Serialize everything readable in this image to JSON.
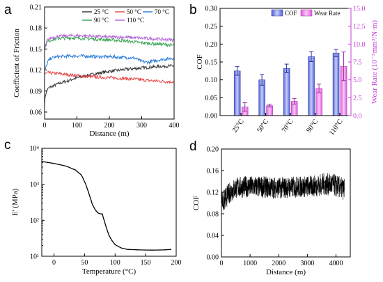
{
  "chart_data": [
    {
      "panel": "a",
      "type": "line",
      "xlabel": "Distance (m)",
      "ylabel": "Coefficient of Friction",
      "xlim": [
        0,
        400
      ],
      "ylim": [
        0.05,
        0.21
      ],
      "xticks": [
        "0",
        "100",
        "200",
        "300",
        "400"
      ],
      "yticks": [
        "0.06",
        "0.09",
        "0.12",
        "0.15",
        "0.18",
        "0.21"
      ],
      "legend_position": "top",
      "series": [
        {
          "name": "25 °C",
          "color": "#3b3b3b",
          "x": [
            0,
            3,
            8,
            15,
            25,
            40,
            60,
            80,
            100,
            130,
            160,
            200,
            250,
            300,
            350,
            400
          ],
          "values": [
            0.072,
            0.085,
            0.092,
            0.095,
            0.097,
            0.1,
            0.103,
            0.106,
            0.109,
            0.112,
            0.115,
            0.118,
            0.121,
            0.123,
            0.125,
            0.126
          ]
        },
        {
          "name": "50 °C",
          "color": "#e84a4a",
          "x": [
            0,
            10,
            40,
            80,
            120,
            160,
            200,
            240,
            280,
            320,
            360,
            400
          ],
          "values": [
            0.114,
            0.116,
            0.115,
            0.113,
            0.111,
            0.11,
            0.109,
            0.108,
            0.107,
            0.105,
            0.104,
            0.103
          ]
        },
        {
          "name": "70 °C",
          "color": "#2f7ed8",
          "x": [
            0,
            10,
            20,
            40,
            80,
            120,
            160,
            200,
            240,
            280,
            300,
            320,
            360,
            400
          ],
          "values": [
            0.118,
            0.132,
            0.137,
            0.139,
            0.14,
            0.14,
            0.139,
            0.139,
            0.138,
            0.137,
            0.132,
            0.131,
            0.135,
            0.137
          ]
        },
        {
          "name": "90 °C",
          "color": "#3ca857",
          "x": [
            0,
            8,
            20,
            40,
            80,
            120,
            160,
            200,
            240,
            280,
            320,
            360,
            400
          ],
          "values": [
            0.152,
            0.16,
            0.163,
            0.165,
            0.166,
            0.165,
            0.164,
            0.163,
            0.162,
            0.16,
            0.158,
            0.157,
            0.155
          ]
        },
        {
          "name": "110 °C",
          "color": "#b26bd6",
          "x": [
            0,
            8,
            20,
            40,
            80,
            120,
            160,
            200,
            240,
            280,
            320,
            360,
            400
          ],
          "values": [
            0.148,
            0.162,
            0.166,
            0.168,
            0.169,
            0.169,
            0.168,
            0.167,
            0.167,
            0.166,
            0.165,
            0.164,
            0.163
          ]
        }
      ]
    },
    {
      "panel": "b",
      "type": "bar",
      "categories": [
        "25°C",
        "50°C",
        "70°C",
        "90°C",
        "110°C"
      ],
      "ylabel": "COF",
      "ylabel_right": "Wear Rate (10⁻⁵mm³/N·m)",
      "ylim": [
        0,
        0.3
      ],
      "ylim_right": [
        0,
        15
      ],
      "yticks": [
        "0.00",
        "0.05",
        "0.10",
        "0.15",
        "0.20",
        "0.25",
        "0.30"
      ],
      "yticks_right": [
        "0.0",
        "2.5",
        "5.0",
        "7.5",
        "10.0",
        "12.5",
        "15.0"
      ],
      "legend_position": "top-right",
      "series": [
        {
          "name": "COF",
          "color": "#4f5fd8",
          "axis": "left",
          "values": [
            0.125,
            0.1,
            0.132,
            0.165,
            0.175
          ],
          "errors": [
            0.012,
            0.015,
            0.012,
            0.014,
            0.01
          ]
        },
        {
          "name": "Wear Rate",
          "color": "#e15ce0",
          "axis": "right",
          "values": [
            1.2,
            1.4,
            2.0,
            3.8,
            6.9
          ],
          "errors": [
            0.6,
            0.2,
            0.4,
            0.6,
            2.0
          ]
        }
      ]
    },
    {
      "panel": "c",
      "type": "line",
      "xlabel": "Temperature (°C)",
      "ylabel": "E' (MPa)",
      "scale_y": "log",
      "xlim": [
        -20,
        200
      ],
      "ylim": [
        10,
        10000
      ],
      "xticks": [
        "0",
        "50",
        "100",
        "150",
        "200"
      ],
      "yticks": [
        "10¹",
        "10²",
        "10³",
        "10⁴"
      ],
      "series": [
        {
          "name": "",
          "color": "#000000",
          "x": [
            -20,
            0,
            20,
            35,
            45,
            52,
            58,
            63,
            68,
            72,
            76,
            79,
            82,
            86,
            90,
            95,
            100,
            110,
            120,
            140,
            160,
            180,
            192
          ],
          "values": [
            4300,
            3800,
            3200,
            2500,
            1800,
            1000,
            500,
            270,
            190,
            160,
            150,
            150,
            100,
            60,
            38,
            27,
            21,
            17,
            15.5,
            15,
            14.8,
            15,
            15.5
          ]
        }
      ]
    },
    {
      "panel": "d",
      "type": "line",
      "xlabel": "Distance (m)",
      "ylabel": "COF",
      "xlim": [
        0,
        4500
      ],
      "ylim": [
        0,
        0.2
      ],
      "xticks": [
        "0",
        "1000",
        "2000",
        "3000",
        "4000"
      ],
      "yticks": [
        "0.00",
        "0.04",
        "0.08",
        "0.12",
        "0.16",
        "0.20"
      ],
      "series": [
        {
          "name": "",
          "color": "#000000",
          "x": [
            0,
            50,
            150,
            300,
            500,
            800,
            1200,
            1600,
            2000,
            2400,
            2800,
            3200,
            3600,
            3900,
            4300
          ],
          "values": [
            0.118,
            0.1,
            0.11,
            0.12,
            0.128,
            0.13,
            0.13,
            0.129,
            0.128,
            0.129,
            0.13,
            0.131,
            0.135,
            0.134,
            0.125
          ],
          "band_halfwidth": [
            0.012,
            0.022,
            0.02,
            0.02,
            0.02,
            0.02,
            0.02,
            0.02,
            0.02,
            0.02,
            0.02,
            0.02,
            0.021,
            0.021,
            0.021
          ]
        }
      ]
    }
  ],
  "panels": {
    "a": "a",
    "b": "b",
    "c": "c",
    "d": "d"
  }
}
